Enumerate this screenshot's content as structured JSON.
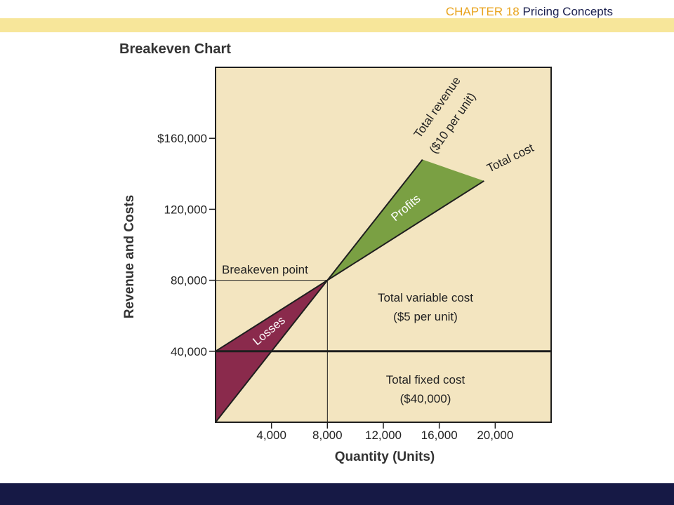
{
  "header": {
    "chapter": "CHAPTER 18",
    "title": "Pricing Concepts"
  },
  "chart_data": {
    "type": "line",
    "title": "Breakeven Chart",
    "xlabel": "Quantity (Units)",
    "ylabel": "Revenue and Costs",
    "xlim": [
      0,
      24000
    ],
    "ylim": [
      0,
      200000
    ],
    "x_ticks": [
      4000,
      8000,
      12000,
      16000,
      20000
    ],
    "x_tick_labels": [
      "4,000",
      "8,000",
      "12,000",
      "16,000",
      "20,000"
    ],
    "y_ticks": [
      40000,
      80000,
      120000,
      160000
    ],
    "y_tick_labels": [
      "40,000",
      "80,000",
      "120,000",
      "$160,000"
    ],
    "series": [
      {
        "name": "Total revenue ($10 per unit)",
        "x": [
          0,
          14800
        ],
        "y": [
          0,
          148000
        ]
      },
      {
        "name": "Total cost",
        "x": [
          0,
          19200
        ],
        "y": [
          40000,
          136000
        ]
      },
      {
        "name": "Total fixed cost ($40,000)",
        "x": [
          0,
          24000
        ],
        "y": [
          40000,
          40000
        ]
      }
    ],
    "breakeven": {
      "x": 8000,
      "y": 80000
    },
    "labels": {
      "revenue_line1": "Total revenue",
      "revenue_line2": "($10 per unit)",
      "total_cost": "Total cost",
      "profits": "Profits",
      "losses": "Losses",
      "breakeven_point": "Breakeven point",
      "variable_line1": "Total variable cost",
      "variable_line2": "($5 per unit)",
      "fixed_line1": "Total fixed cost",
      "fixed_line2": "($40,000)"
    },
    "colors": {
      "background": "#f3e5c0",
      "profits": "#7aa043",
      "losses": "#8a2a4c",
      "line": "#1e1e1e"
    }
  }
}
